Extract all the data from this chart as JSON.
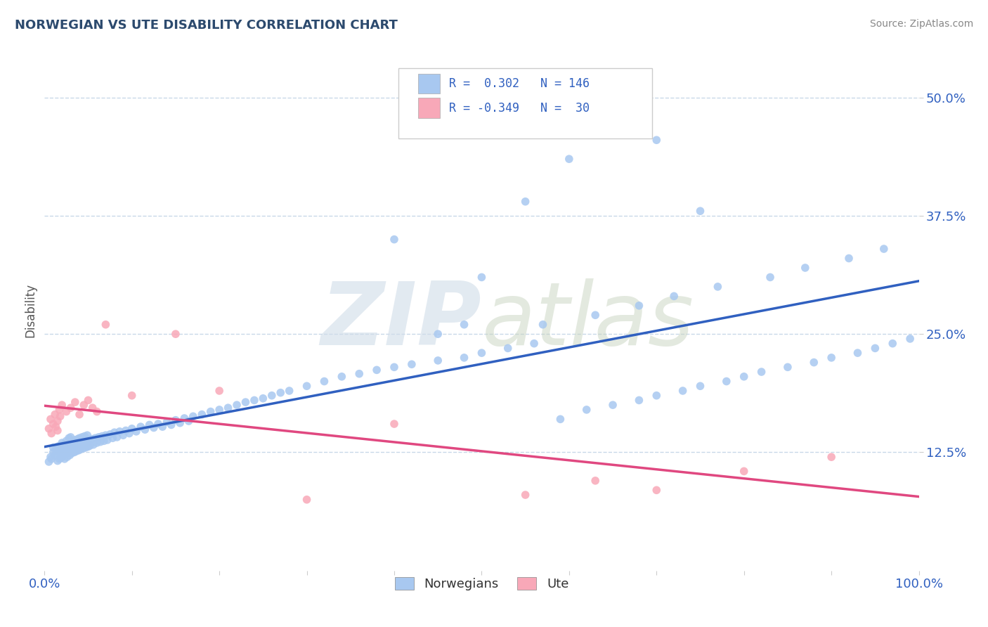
{
  "title": "NORWEGIAN VS UTE DISABILITY CORRELATION CHART",
  "source": "Source: ZipAtlas.com",
  "ylabel": "Disability",
  "xlim": [
    0,
    1.0
  ],
  "ylim": [
    0,
    0.55
  ],
  "yticks": [
    0.125,
    0.25,
    0.375,
    0.5
  ],
  "ytick_labels": [
    "12.5%",
    "25.0%",
    "37.5%",
    "50.0%"
  ],
  "norwegian_R": 0.302,
  "norwegian_N": 146,
  "ute_R": -0.349,
  "ute_N": 30,
  "norwegian_color": "#A8C8F0",
  "ute_color": "#F8A8B8",
  "trend_norwegian_color": "#3060C0",
  "trend_ute_color": "#E04880",
  "background_color": "#FFFFFF",
  "grid_color": "#C8D8E8",
  "title_color": "#2C4A6E",
  "tick_color": "#3060C0",
  "norwegians_x": [
    0.005,
    0.007,
    0.008,
    0.01,
    0.01,
    0.012,
    0.013,
    0.015,
    0.015,
    0.015,
    0.017,
    0.018,
    0.018,
    0.019,
    0.02,
    0.02,
    0.02,
    0.021,
    0.022,
    0.022,
    0.023,
    0.024,
    0.025,
    0.025,
    0.026,
    0.027,
    0.028,
    0.028,
    0.029,
    0.03,
    0.03,
    0.03,
    0.031,
    0.032,
    0.033,
    0.034,
    0.035,
    0.035,
    0.036,
    0.037,
    0.038,
    0.039,
    0.04,
    0.04,
    0.041,
    0.042,
    0.043,
    0.044,
    0.045,
    0.046,
    0.047,
    0.048,
    0.049,
    0.05,
    0.05,
    0.052,
    0.054,
    0.056,
    0.058,
    0.06,
    0.062,
    0.064,
    0.066,
    0.068,
    0.07,
    0.072,
    0.075,
    0.078,
    0.08,
    0.083,
    0.086,
    0.09,
    0.093,
    0.097,
    0.1,
    0.105,
    0.11,
    0.115,
    0.12,
    0.125,
    0.13,
    0.135,
    0.14,
    0.145,
    0.15,
    0.155,
    0.16,
    0.165,
    0.17,
    0.18,
    0.19,
    0.2,
    0.21,
    0.22,
    0.23,
    0.24,
    0.25,
    0.26,
    0.27,
    0.28,
    0.3,
    0.32,
    0.34,
    0.36,
    0.38,
    0.4,
    0.42,
    0.45,
    0.48,
    0.5,
    0.53,
    0.56,
    0.59,
    0.62,
    0.65,
    0.68,
    0.7,
    0.73,
    0.75,
    0.78,
    0.8,
    0.82,
    0.85,
    0.88,
    0.9,
    0.93,
    0.95,
    0.97,
    0.99,
    0.5,
    0.55,
    0.6,
    0.7,
    0.75,
    0.57,
    0.63,
    0.68,
    0.72,
    0.77,
    0.83,
    0.87,
    0.92,
    0.96,
    0.4,
    0.45,
    0.48
  ],
  "norwegians_y": [
    0.115,
    0.12,
    0.118,
    0.125,
    0.13,
    0.122,
    0.128,
    0.116,
    0.123,
    0.131,
    0.118,
    0.125,
    0.132,
    0.119,
    0.124,
    0.128,
    0.135,
    0.121,
    0.126,
    0.133,
    0.118,
    0.124,
    0.13,
    0.137,
    0.12,
    0.127,
    0.133,
    0.14,
    0.122,
    0.128,
    0.134,
    0.141,
    0.124,
    0.13,
    0.136,
    0.125,
    0.131,
    0.138,
    0.126,
    0.132,
    0.139,
    0.127,
    0.133,
    0.14,
    0.128,
    0.134,
    0.141,
    0.129,
    0.135,
    0.142,
    0.13,
    0.136,
    0.143,
    0.131,
    0.138,
    0.132,
    0.139,
    0.133,
    0.14,
    0.135,
    0.141,
    0.136,
    0.142,
    0.137,
    0.143,
    0.138,
    0.144,
    0.14,
    0.146,
    0.141,
    0.147,
    0.143,
    0.148,
    0.145,
    0.15,
    0.147,
    0.152,
    0.149,
    0.154,
    0.151,
    0.155,
    0.152,
    0.157,
    0.154,
    0.159,
    0.156,
    0.161,
    0.158,
    0.163,
    0.165,
    0.168,
    0.17,
    0.172,
    0.175,
    0.178,
    0.18,
    0.182,
    0.185,
    0.188,
    0.19,
    0.195,
    0.2,
    0.205,
    0.208,
    0.212,
    0.215,
    0.218,
    0.222,
    0.225,
    0.23,
    0.235,
    0.24,
    0.16,
    0.17,
    0.175,
    0.18,
    0.185,
    0.19,
    0.195,
    0.2,
    0.205,
    0.21,
    0.215,
    0.22,
    0.225,
    0.23,
    0.235,
    0.24,
    0.245,
    0.31,
    0.39,
    0.435,
    0.455,
    0.38,
    0.26,
    0.27,
    0.28,
    0.29,
    0.3,
    0.31,
    0.32,
    0.33,
    0.34,
    0.35,
    0.25,
    0.26
  ],
  "ute_x": [
    0.005,
    0.007,
    0.008,
    0.01,
    0.012,
    0.013,
    0.015,
    0.015,
    0.017,
    0.018,
    0.02,
    0.025,
    0.03,
    0.035,
    0.04,
    0.045,
    0.05,
    0.055,
    0.06,
    0.07,
    0.1,
    0.15,
    0.2,
    0.3,
    0.4,
    0.55,
    0.63,
    0.7,
    0.8,
    0.9
  ],
  "ute_y": [
    0.15,
    0.16,
    0.145,
    0.155,
    0.165,
    0.152,
    0.148,
    0.158,
    0.17,
    0.163,
    0.175,
    0.168,
    0.172,
    0.178,
    0.165,
    0.175,
    0.18,
    0.172,
    0.168,
    0.26,
    0.185,
    0.25,
    0.19,
    0.075,
    0.155,
    0.08,
    0.095,
    0.085,
    0.105,
    0.12
  ]
}
